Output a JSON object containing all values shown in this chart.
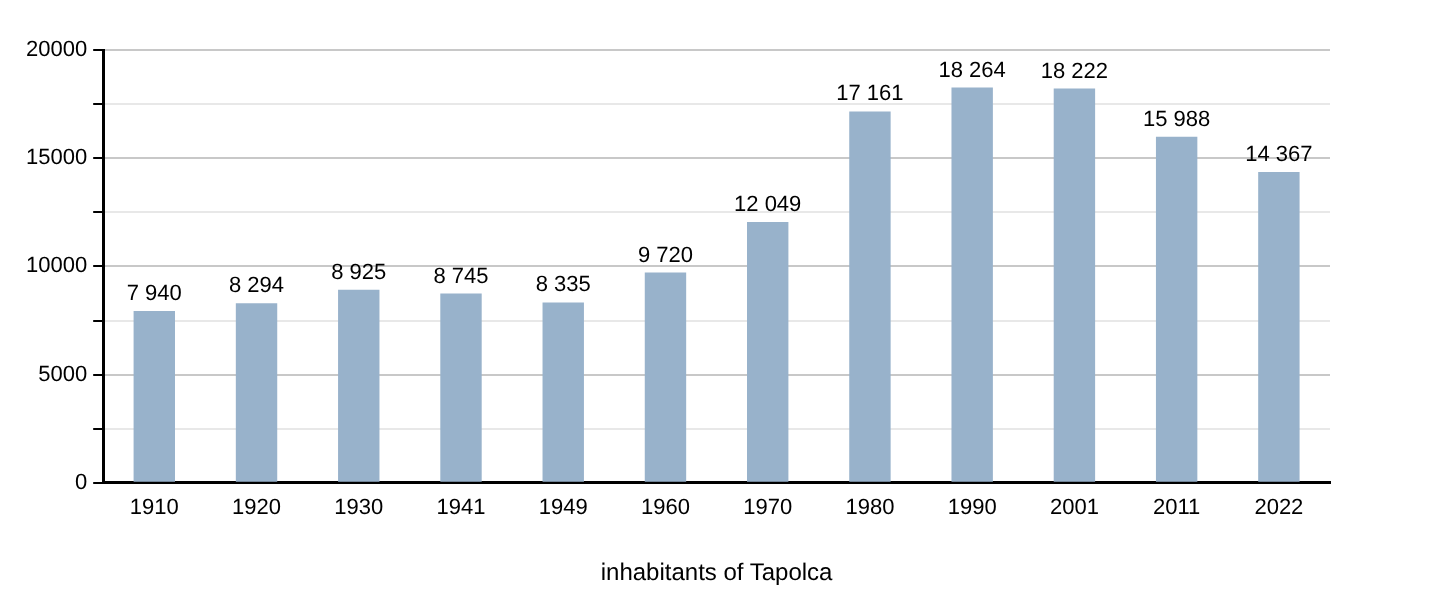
{
  "chart_data": {
    "type": "bar",
    "xlabel": "inhabitants of Tapolca",
    "categories": [
      "1910",
      "1920",
      "1930",
      "1941",
      "1949",
      "1960",
      "1970",
      "1980",
      "1990",
      "2001",
      "2011",
      "2022"
    ],
    "values": [
      7940,
      8294,
      8925,
      8745,
      8335,
      9720,
      12049,
      17161,
      18264,
      18222,
      15988,
      14367
    ],
    "value_labels": [
      "7 940",
      "8 294",
      "8 925",
      "8 745",
      "8 335",
      "9 720",
      "12 049",
      "17 161",
      "18 264",
      "18 222",
      "15 988",
      "14 367"
    ],
    "color": "#98b2cb",
    "ylim": [
      0,
      20000
    ],
    "yticks": [
      0,
      {
        "value": 2500,
        "label": null
      },
      5000,
      {
        "value": 7500,
        "label": null
      },
      10000,
      {
        "value": 12500,
        "label": null
      },
      15000,
      {
        "value": 17500,
        "label": null
      },
      20000
    ],
    "grid": "y",
    "legend": false
  }
}
